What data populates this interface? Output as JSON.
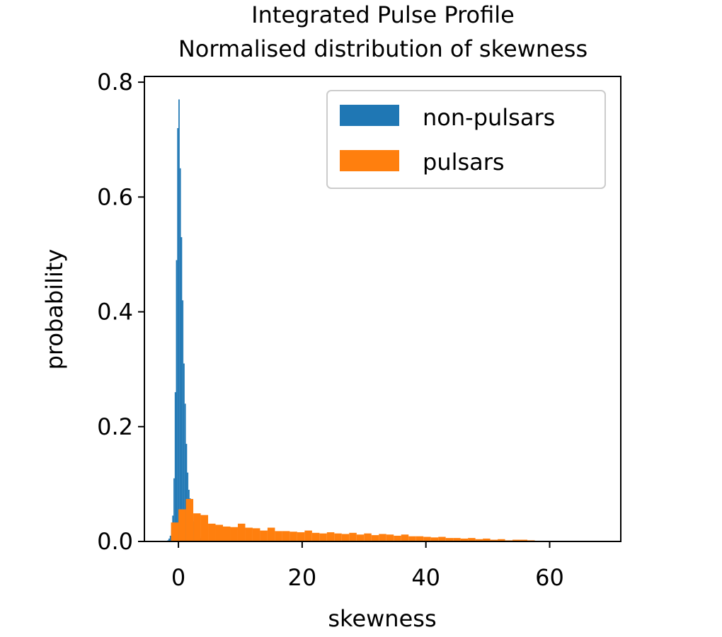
{
  "chart_data": {
    "type": "bar",
    "title": "Integrated Pulse Profile",
    "subtitle": "Normalised distribution of skewness",
    "xlabel": "skewness",
    "ylabel": "probability",
    "xlim": [
      -5.5,
      71.5
    ],
    "ylim": [
      0,
      0.81
    ],
    "xticks": [
      0,
      20,
      40,
      60
    ],
    "yticks": [
      0.0,
      0.2,
      0.4,
      0.6,
      0.8
    ],
    "xtick_labels": [
      "0",
      "20",
      "40",
      "60"
    ],
    "ytick_labels": [
      "0.0",
      "0.2",
      "0.4",
      "0.6",
      "0.8"
    ],
    "grid": false,
    "legend_position": "top-right",
    "series": [
      {
        "name": "non-pulsars",
        "color": "#1f77b4",
        "bin_edges": [
          -1.8,
          -1.6,
          -1.4,
          -1.2,
          -1.0,
          -0.8,
          -0.6,
          -0.4,
          -0.2,
          0.0,
          0.2,
          0.4,
          0.6,
          0.8,
          1.0,
          1.2,
          1.4,
          1.6,
          1.8,
          2.0,
          2.2,
          2.4,
          2.6,
          2.8,
          3.0,
          3.2,
          3.4,
          3.6,
          3.8,
          4.0,
          4.2
        ],
        "values": [
          0.002,
          0.005,
          0.01,
          0.02,
          0.045,
          0.11,
          0.26,
          0.49,
          0.72,
          0.77,
          0.65,
          0.53,
          0.42,
          0.31,
          0.24,
          0.17,
          0.12,
          0.09,
          0.075,
          0.06,
          0.045,
          0.035,
          0.025,
          0.02,
          0.015,
          0.01,
          0.008,
          0.006,
          0.004,
          0.003
        ]
      },
      {
        "name": "pulsars",
        "color": "#ff7f0e",
        "bin_edges": [
          -1.2,
          0.0,
          1.2,
          2.4,
          3.6,
          4.8,
          6.0,
          7.2,
          8.4,
          9.6,
          10.8,
          12.0,
          13.2,
          14.4,
          15.6,
          16.8,
          18.0,
          19.2,
          20.4,
          21.6,
          22.8,
          24.0,
          25.2,
          26.4,
          27.6,
          28.8,
          30.0,
          31.2,
          32.4,
          33.6,
          34.8,
          36.0,
          37.2,
          38.4,
          39.6,
          40.8,
          42.0,
          43.2,
          44.4,
          45.6,
          46.8,
          48.0,
          49.2,
          50.4,
          51.6,
          52.8,
          54.0,
          55.2,
          56.4,
          57.6
        ],
        "values": [
          0.033,
          0.056,
          0.074,
          0.049,
          0.046,
          0.031,
          0.029,
          0.026,
          0.025,
          0.031,
          0.024,
          0.023,
          0.019,
          0.024,
          0.018,
          0.018,
          0.017,
          0.016,
          0.019,
          0.015,
          0.014,
          0.016,
          0.014,
          0.013,
          0.015,
          0.012,
          0.014,
          0.011,
          0.013,
          0.012,
          0.01,
          0.012,
          0.009,
          0.009,
          0.008,
          0.007,
          0.008,
          0.006,
          0.006,
          0.005,
          0.006,
          0.004,
          0.005,
          0.003,
          0.004,
          0.002,
          0.003,
          0.003,
          0.002
        ]
      }
    ]
  }
}
